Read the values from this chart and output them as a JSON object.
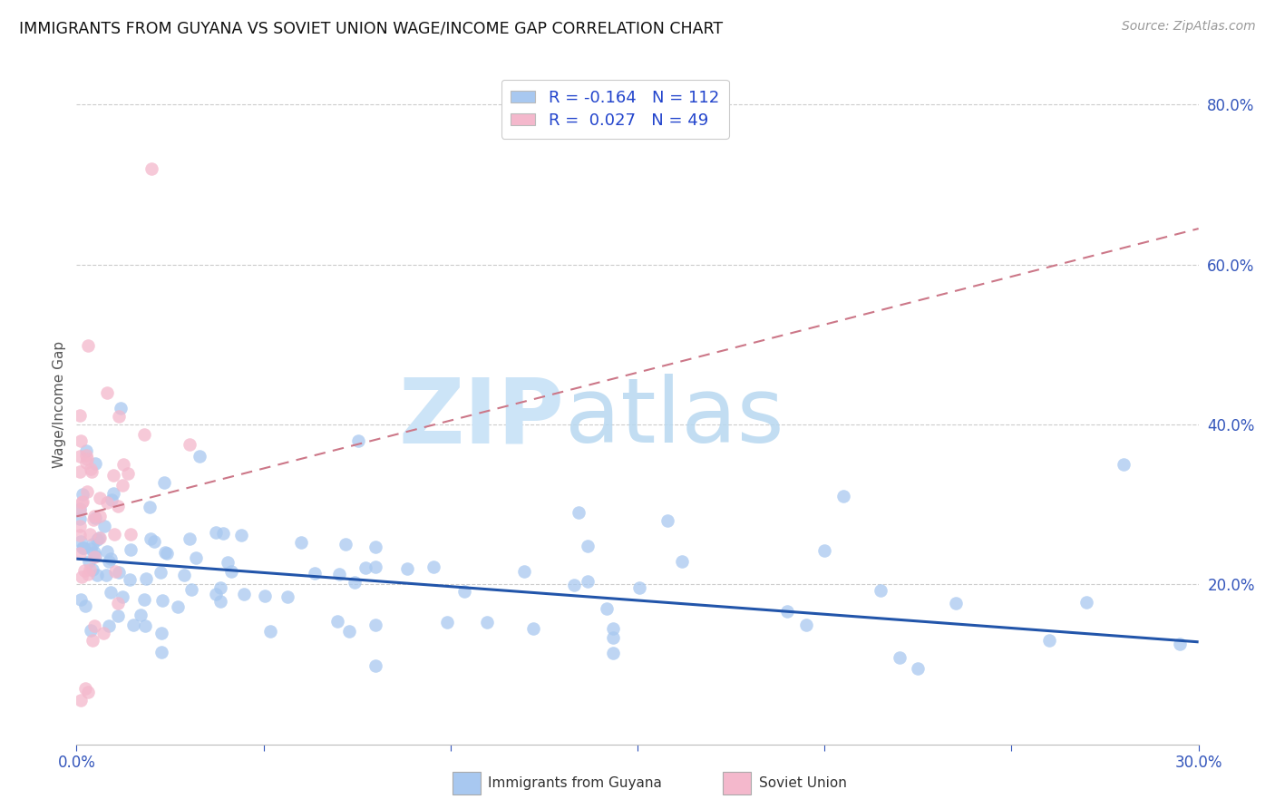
{
  "title": "IMMIGRANTS FROM GUYANA VS SOVIET UNION WAGE/INCOME GAP CORRELATION CHART",
  "source": "Source: ZipAtlas.com",
  "ylabel": "Wage/Income Gap",
  "xlim": [
    0.0,
    0.3
  ],
  "ylim": [
    0.0,
    0.85
  ],
  "xticks": [
    0.0,
    0.05,
    0.1,
    0.15,
    0.2,
    0.25,
    0.3
  ],
  "xtick_labels": [
    "0.0%",
    "",
    "",
    "",
    "",
    "",
    "30.0%"
  ],
  "yticks_right": [
    0.2,
    0.4,
    0.6,
    0.8
  ],
  "ytick_labels_right": [
    "20.0%",
    "40.0%",
    "60.0%",
    "80.0%"
  ],
  "guyana_color": "#a8c8f0",
  "soviet_color": "#f4b8cc",
  "guyana_line_color": "#2255aa",
  "soviet_line_color": "#cc7788",
  "guyana_R": -0.164,
  "guyana_N": 112,
  "soviet_R": 0.027,
  "soviet_N": 49,
  "legend_label_guyana": "Immigrants from Guyana",
  "legend_label_soviet": "Soviet Union",
  "watermark_zip": "ZIP",
  "watermark_atlas": "atlas",
  "background_color": "#ffffff",
  "guyana_line_x0": 0.0,
  "guyana_line_y0": 0.232,
  "guyana_line_x1": 0.3,
  "guyana_line_y1": 0.128,
  "soviet_line_x0": 0.0,
  "soviet_line_y0": 0.285,
  "soviet_line_x1": 0.3,
  "soviet_line_y1": 0.645
}
